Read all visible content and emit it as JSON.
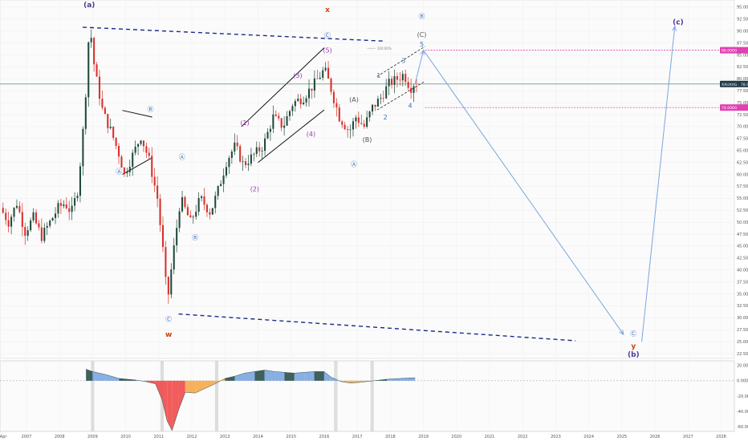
{
  "chart_data": {
    "type": "candlestick",
    "price_axis": {
      "ticks": [
        "95.000",
        "92.500",
        "90.000",
        "87.500",
        "85.000",
        "82.500",
        "80.000",
        "77.500",
        "75.000",
        "72.500",
        "70.000",
        "67.500",
        "65.000",
        "62.500",
        "60.000",
        "57.500",
        "55.000",
        "52.500",
        "50.000",
        "47.500",
        "45.000",
        "42.500",
        "40.000",
        "37.500",
        "35.000",
        "32.500",
        "30.000",
        "27.500",
        "25.000",
        "22.500"
      ],
      "range": [
        21.5,
        96.5
      ],
      "current_price": {
        "label": "XAUXAG · 78.919",
        "value": 78.919,
        "color": "#1e3a45"
      },
      "target_high": {
        "label": "86.0000",
        "value": 86.0,
        "color": "#e040b0"
      },
      "target_low": {
        "label": "74.0000",
        "value": 74.0,
        "color": "#e040b0"
      }
    },
    "oscillator_axis": {
      "ticks": [
        "20.0000",
        "0.0000",
        "-20.0000",
        "-40.0000",
        "-60.0000"
      ],
      "range": [
        -66,
        26
      ]
    },
    "time_axis": {
      "labels": [
        "Apr",
        "2007",
        "2008",
        "2009",
        "2010",
        "2011",
        "2012",
        "2013",
        "2014",
        "2015",
        "2016",
        "2017",
        "2018",
        "2019",
        "2020",
        "2021",
        "2022",
        "2023",
        "2024",
        "2025",
        "2026",
        "2027",
        "2028"
      ],
      "range": [
        2006.2,
        2028.4
      ]
    },
    "price_path": [
      [
        2006.25,
        53
      ],
      [
        2006.5,
        50
      ],
      [
        2006.75,
        54
      ],
      [
        2007.0,
        48
      ],
      [
        2007.25,
        51
      ],
      [
        2007.5,
        47
      ],
      [
        2007.75,
        50
      ],
      [
        2008.0,
        53
      ],
      [
        2008.2,
        54
      ],
      [
        2008.4,
        52
      ],
      [
        2008.6,
        57
      ],
      [
        2008.8,
        73
      ],
      [
        2008.95,
        92
      ],
      [
        2009.1,
        82
      ],
      [
        2009.35,
        73
      ],
      [
        2009.6,
        69
      ],
      [
        2009.85,
        64
      ],
      [
        2010.0,
        60
      ],
      [
        2010.25,
        64
      ],
      [
        2010.5,
        68
      ],
      [
        2010.75,
        63
      ],
      [
        2011.0,
        55
      ],
      [
        2011.2,
        42
      ],
      [
        2011.3,
        33
      ],
      [
        2011.45,
        42
      ],
      [
        2011.7,
        55
      ],
      [
        2012.0,
        50
      ],
      [
        2012.3,
        55
      ],
      [
        2012.6,
        52
      ],
      [
        2012.85,
        57
      ],
      [
        2013.1,
        63
      ],
      [
        2013.35,
        66
      ],
      [
        2013.6,
        62
      ],
      [
        2013.9,
        64
      ],
      [
        2014.2,
        66
      ],
      [
        2014.5,
        72
      ],
      [
        2014.8,
        70
      ],
      [
        2015.1,
        75
      ],
      [
        2015.4,
        76
      ],
      [
        2015.75,
        79
      ],
      [
        2016.05,
        82
      ],
      [
        2016.2,
        79
      ],
      [
        2016.5,
        72
      ],
      [
        2016.8,
        69
      ],
      [
        2017.0,
        72
      ],
      [
        2017.25,
        70
      ],
      [
        2017.5,
        74
      ],
      [
        2017.75,
        76
      ],
      [
        2018.0,
        79
      ],
      [
        2018.25,
        80
      ],
      [
        2018.45,
        81
      ],
      [
        2018.65,
        78
      ],
      [
        2018.75,
        79
      ]
    ],
    "projection": [
      [
        2018.75,
        79
      ],
      [
        2019.0,
        86
      ],
      [
        2025.1,
        25
      ],
      [
        2025.5,
        25
      ],
      [
        2026.6,
        91
      ]
    ],
    "wave_labels": [
      {
        "text": "(a)",
        "x": 2008.9,
        "y": 95.0,
        "color": "#4a3a9a",
        "size": "big"
      },
      {
        "text": "Ⓐ",
        "x": 2009.8,
        "y": 60.2,
        "color": "#3a6fc0",
        "size": "small"
      },
      {
        "text": "Ⓑ",
        "x": 2010.75,
        "y": 73.2,
        "color": "#3a6fc0",
        "size": "small"
      },
      {
        "text": "Ⓐ",
        "x": 2011.7,
        "y": 63.2,
        "color": "#3a6fc0",
        "size": "small"
      },
      {
        "text": "Ⓑ",
        "x": 2012.1,
        "y": 46.3,
        "color": "#3a6fc0",
        "size": "small"
      },
      {
        "text": "Ⓒ",
        "x": 2011.3,
        "y": 29.2,
        "color": "#3a6fc0",
        "size": "small"
      },
      {
        "text": "w",
        "x": 2011.3,
        "y": 26.0,
        "color": "#d04010",
        "size": "big"
      },
      {
        "text": "(1)",
        "x": 2013.6,
        "y": 70.3,
        "color": "#9a3ab0",
        "size": "small"
      },
      {
        "text": "(2)",
        "x": 2013.9,
        "y": 56.5,
        "color": "#9a3ab0",
        "size": "small"
      },
      {
        "text": "(3)",
        "x": 2015.2,
        "y": 80.2,
        "color": "#9a3ab0",
        "size": "small"
      },
      {
        "text": "(4)",
        "x": 2015.6,
        "y": 68.0,
        "color": "#9a3ab0",
        "size": "small"
      },
      {
        "text": "(5)",
        "x": 2016.1,
        "y": 85.5,
        "color": "#9a3ab0",
        "size": "small"
      },
      {
        "text": "x",
        "x": 2016.1,
        "y": 94.0,
        "color": "#d04010",
        "size": "big"
      },
      {
        "text": "Ⓒ",
        "x": 2016.1,
        "y": 88.6,
        "color": "#3a6fc0",
        "size": "small"
      },
      {
        "text": "(A)",
        "x": 2016.9,
        "y": 75.2,
        "color": "#555555",
        "size": "small"
      },
      {
        "text": "(B)",
        "x": 2017.3,
        "y": 66.8,
        "color": "#555555",
        "size": "small"
      },
      {
        "text": "Ⓐ",
        "x": 2016.9,
        "y": 61.7,
        "color": "#3a6fc0",
        "size": "small"
      },
      {
        "text": "1",
        "x": 2017.65,
        "y": 80.2,
        "color": "#3a6fc0",
        "size": "small"
      },
      {
        "text": "2",
        "x": 2017.85,
        "y": 71.5,
        "color": "#3a6fc0",
        "size": "small"
      },
      {
        "text": "3",
        "x": 2018.4,
        "y": 83.3,
        "color": "#3a6fc0",
        "size": "small"
      },
      {
        "text": "4",
        "x": 2018.6,
        "y": 73.9,
        "color": "#3a6fc0",
        "size": "small"
      },
      {
        "text": "5",
        "x": 2018.95,
        "y": 86.8,
        "color": "#3a6fc0",
        "size": "small"
      },
      {
        "text": "(C)",
        "x": 2018.95,
        "y": 88.8,
        "color": "#555555",
        "size": "small"
      },
      {
        "text": "Ⓑ",
        "x": 2018.95,
        "y": 92.6,
        "color": "#3a6fc0",
        "size": "small"
      },
      {
        "text": "Ⓒ",
        "x": 2025.35,
        "y": 26.2,
        "color": "#3a6fc0",
        "size": "small"
      },
      {
        "text": "y",
        "x": 2025.35,
        "y": 23.6,
        "color": "#d04010",
        "size": "big"
      },
      {
        "text": "(b)",
        "x": 2025.35,
        "y": 21.8,
        "color": "#4a3a9a",
        "size": "big"
      },
      {
        "text": "(c)",
        "x": 2026.7,
        "y": 91.4,
        "color": "#4a3a9a",
        "size": "big"
      }
    ],
    "fib_label": {
      "text": "100.00%",
      "x": 2017.6,
      "y": 86.4,
      "color": "#888888"
    },
    "oscillator_shading": [
      {
        "x0": 2008.95,
        "x1": 2009.05
      },
      {
        "x0": 2011.05,
        "x1": 2011.15
      },
      {
        "x0": 2012.7,
        "x1": 2012.8
      },
      {
        "x0": 2016.3,
        "x1": 2016.4
      },
      {
        "x0": 2017.4,
        "x1": 2017.5
      }
    ],
    "oscillator_path": [
      [
        2008.8,
        15
      ],
      [
        2009.0,
        12
      ],
      [
        2009.4,
        8
      ],
      [
        2009.8,
        3
      ],
      [
        2010.3,
        1
      ],
      [
        2010.6,
        -1
      ],
      [
        2010.9,
        -4
      ],
      [
        2011.1,
        -25
      ],
      [
        2011.25,
        -52
      ],
      [
        2011.4,
        -65
      ],
      [
        2011.6,
        -38
      ],
      [
        2011.8,
        -15
      ],
      [
        2012.1,
        -16
      ],
      [
        2012.4,
        -10
      ],
      [
        2012.7,
        -4
      ],
      [
        2013.0,
        3
      ],
      [
        2013.3,
        6
      ],
      [
        2013.6,
        10
      ],
      [
        2013.9,
        12
      ],
      [
        2014.2,
        14
      ],
      [
        2014.5,
        12
      ],
      [
        2014.8,
        11
      ],
      [
        2015.1,
        10
      ],
      [
        2015.4,
        11
      ],
      [
        2015.7,
        12
      ],
      [
        2016.0,
        12
      ],
      [
        2016.2,
        5
      ],
      [
        2016.5,
        -1
      ],
      [
        2016.8,
        -3
      ],
      [
        2017.1,
        -2
      ],
      [
        2017.5,
        0
      ],
      [
        2017.9,
        2
      ],
      [
        2018.3,
        3
      ],
      [
        2018.75,
        4
      ]
    ]
  }
}
